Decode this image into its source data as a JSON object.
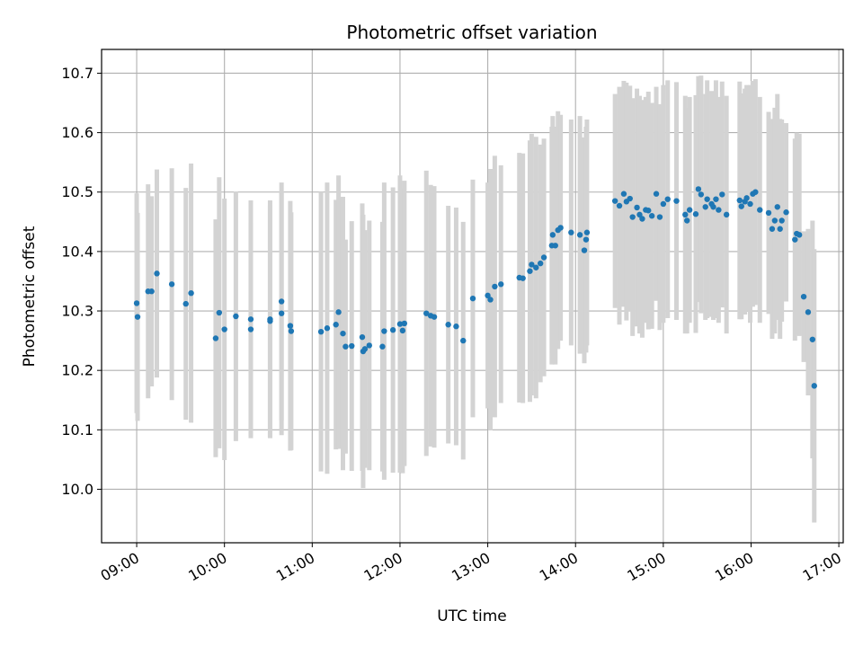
{
  "chart_data": {
    "type": "scatter",
    "title": "Photometric offset variation",
    "xlabel": "UTC time",
    "ylabel": "Photometric offset",
    "x_unit": "hours UTC (decimal)",
    "xlim": [
      8.6,
      17.05
    ],
    "ylim": [
      9.91,
      10.74
    ],
    "x_ticks": [
      9,
      10,
      11,
      12,
      13,
      14,
      15,
      16,
      17
    ],
    "x_tick_labels": [
      "09:00",
      "10:00",
      "11:00",
      "12:00",
      "13:00",
      "14:00",
      "15:00",
      "16:00",
      "17:00"
    ],
    "y_ticks": [
      10.0,
      10.1,
      10.2,
      10.3,
      10.4,
      10.5,
      10.6,
      10.7
    ],
    "y_tick_labels": [
      "10.0",
      "10.1",
      "10.2",
      "10.3",
      "10.4",
      "10.5",
      "10.6",
      "10.7"
    ],
    "grid": true,
    "legend": "none",
    "colors": {
      "points": "#1f77b4",
      "errorbars": "#d3d3d3",
      "grid": "#b0b0b0"
    },
    "series": [
      {
        "points": [
          [
            9.0,
            10.313,
            0.185
          ],
          [
            9.01,
            10.29,
            0.175
          ],
          [
            9.13,
            10.333,
            0.18
          ],
          [
            9.17,
            10.333,
            0.16
          ],
          [
            9.23,
            10.363,
            0.175
          ],
          [
            9.4,
            10.345,
            0.195
          ],
          [
            9.56,
            10.312,
            0.195
          ],
          [
            9.62,
            10.33,
            0.218
          ],
          [
            9.9,
            10.254,
            0.2
          ],
          [
            9.94,
            10.297,
            0.228
          ],
          [
            10.0,
            10.269,
            0.22
          ],
          [
            10.13,
            10.291,
            0.21
          ],
          [
            10.3,
            10.286,
            0.2
          ],
          [
            10.3,
            10.269,
            0.18
          ],
          [
            10.52,
            10.286,
            0.2
          ],
          [
            10.52,
            10.283,
            0.195
          ],
          [
            10.65,
            10.316,
            0.2
          ],
          [
            10.65,
            10.296,
            0.205
          ],
          [
            10.75,
            10.275,
            0.21
          ],
          [
            10.76,
            10.266,
            0.2
          ],
          [
            11.1,
            10.265,
            0.235
          ],
          [
            11.17,
            10.271,
            0.245
          ],
          [
            11.27,
            10.277,
            0.21
          ],
          [
            11.3,
            10.298,
            0.23
          ],
          [
            11.35,
            10.262,
            0.23
          ],
          [
            11.38,
            10.24,
            0.18
          ],
          [
            11.45,
            10.241,
            0.21
          ],
          [
            11.57,
            10.256,
            0.225
          ],
          [
            11.58,
            10.232,
            0.23
          ],
          [
            11.6,
            10.236,
            0.2
          ],
          [
            11.65,
            10.242,
            0.21
          ],
          [
            11.8,
            10.24,
            0.21
          ],
          [
            11.82,
            10.266,
            0.25
          ],
          [
            11.92,
            10.268,
            0.24
          ],
          [
            12.0,
            10.278,
            0.25
          ],
          [
            12.03,
            10.267,
            0.24
          ],
          [
            12.05,
            10.279,
            0.24
          ],
          [
            12.3,
            10.296,
            0.24
          ],
          [
            12.35,
            10.292,
            0.22
          ],
          [
            12.39,
            10.29,
            0.22
          ],
          [
            12.55,
            10.277,
            0.2
          ],
          [
            12.64,
            10.274,
            0.2
          ],
          [
            12.72,
            10.25,
            0.2
          ],
          [
            12.83,
            10.321,
            0.2
          ],
          [
            13.0,
            10.326,
            0.19
          ],
          [
            13.03,
            10.319,
            0.22
          ],
          [
            13.08,
            10.341,
            0.22
          ],
          [
            13.15,
            10.345,
            0.2
          ],
          [
            13.36,
            10.356,
            0.21
          ],
          [
            13.4,
            10.355,
            0.21
          ],
          [
            13.48,
            10.367,
            0.22
          ],
          [
            13.5,
            10.378,
            0.22
          ],
          [
            13.55,
            10.373,
            0.22
          ],
          [
            13.6,
            10.38,
            0.2
          ],
          [
            13.64,
            10.39,
            0.2
          ],
          [
            13.73,
            10.41,
            0.2
          ],
          [
            13.74,
            10.428,
            0.2
          ],
          [
            13.77,
            10.41,
            0.2
          ],
          [
            13.8,
            10.436,
            0.2
          ],
          [
            13.83,
            10.44,
            0.19
          ],
          [
            13.95,
            10.432,
            0.19
          ],
          [
            14.05,
            10.428,
            0.2
          ],
          [
            14.1,
            10.402,
            0.19
          ],
          [
            14.12,
            10.42,
            0.19
          ],
          [
            14.13,
            10.432,
            0.19
          ],
          [
            14.45,
            10.485,
            0.18
          ],
          [
            14.5,
            10.477,
            0.2
          ],
          [
            14.55,
            10.497,
            0.19
          ],
          [
            14.58,
            10.484,
            0.2
          ],
          [
            14.62,
            10.489,
            0.19
          ],
          [
            14.65,
            10.458,
            0.2
          ],
          [
            14.7,
            10.474,
            0.2
          ],
          [
            14.73,
            10.462,
            0.2
          ],
          [
            14.76,
            10.455,
            0.2
          ],
          [
            14.8,
            10.47,
            0.19
          ],
          [
            14.83,
            10.469,
            0.2
          ],
          [
            14.87,
            10.46,
            0.19
          ],
          [
            14.92,
            10.497,
            0.18
          ],
          [
            14.96,
            10.458,
            0.19
          ],
          [
            15.0,
            10.48,
            0.2
          ],
          [
            15.05,
            10.488,
            0.2
          ],
          [
            15.15,
            10.485,
            0.2
          ],
          [
            15.25,
            10.462,
            0.2
          ],
          [
            15.27,
            10.452,
            0.19
          ],
          [
            15.3,
            10.47,
            0.19
          ],
          [
            15.37,
            10.463,
            0.2
          ],
          [
            15.4,
            10.505,
            0.19
          ],
          [
            15.43,
            10.496,
            0.2
          ],
          [
            15.48,
            10.475,
            0.19
          ],
          [
            15.5,
            10.488,
            0.2
          ],
          [
            15.55,
            10.48,
            0.19
          ],
          [
            15.57,
            10.475,
            0.19
          ],
          [
            15.6,
            10.488,
            0.2
          ],
          [
            15.63,
            10.47,
            0.19
          ],
          [
            15.67,
            10.496,
            0.19
          ],
          [
            15.72,
            10.462,
            0.2
          ],
          [
            15.87,
            10.486,
            0.2
          ],
          [
            15.89,
            10.476,
            0.19
          ],
          [
            15.93,
            10.484,
            0.19
          ],
          [
            15.95,
            10.49,
            0.19
          ],
          [
            15.99,
            10.48,
            0.2
          ],
          [
            16.02,
            10.497,
            0.19
          ],
          [
            16.05,
            10.5,
            0.19
          ],
          [
            16.1,
            10.47,
            0.19
          ],
          [
            16.2,
            10.465,
            0.17
          ],
          [
            16.24,
            10.438,
            0.185
          ],
          [
            16.27,
            10.452,
            0.19
          ],
          [
            16.3,
            10.475,
            0.19
          ],
          [
            16.33,
            10.438,
            0.185
          ],
          [
            16.35,
            10.452,
            0.17
          ],
          [
            16.4,
            10.466,
            0.15
          ],
          [
            16.5,
            10.42,
            0.17
          ],
          [
            16.52,
            10.43,
            0.17
          ],
          [
            16.55,
            10.428,
            0.17
          ],
          [
            16.6,
            10.324,
            0.11
          ],
          [
            16.65,
            10.298,
            0.14
          ],
          [
            16.7,
            10.252,
            0.2
          ],
          [
            16.72,
            10.174,
            0.23
          ]
        ]
      }
    ]
  }
}
